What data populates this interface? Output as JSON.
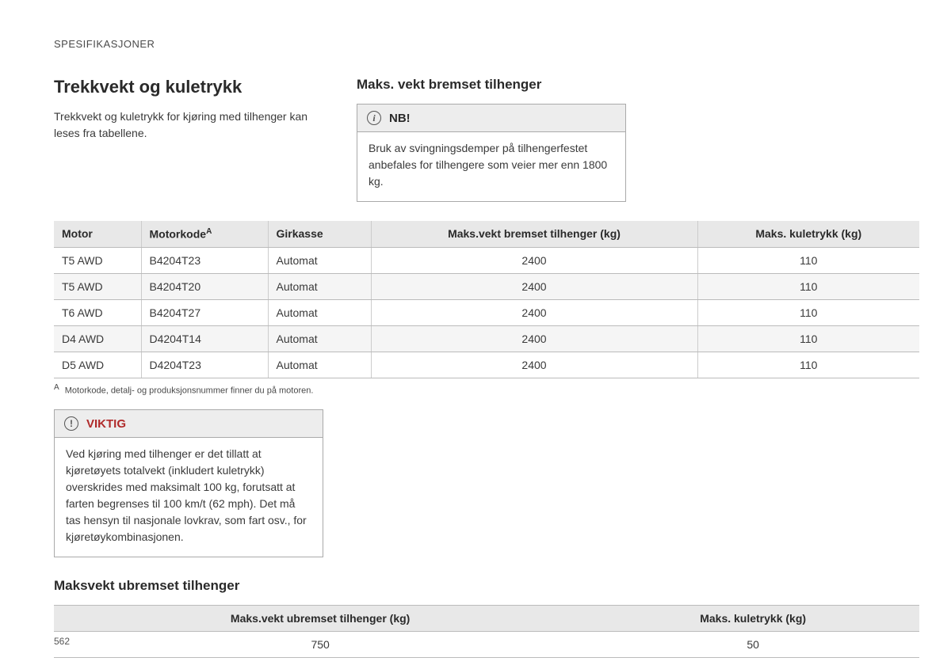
{
  "section_label": "SPESIFIKASJONER",
  "main_heading": "Trekkvekt og kuletrykk",
  "intro_text": "Trekkvekt og kuletrykk for kjøring med tilhenger kan leses fra tabellene.",
  "subheading_right": "Maks. vekt bremset tilhenger",
  "nb_box": {
    "label": "NB!",
    "body": "Bruk av svingningsdemper på tilhengerfestet anbefales for tilhengere som veier mer enn 1800 kg."
  },
  "table1": {
    "columns": [
      "Motor",
      "Motorkode",
      "Girkasse",
      "Maks.vekt bremset tilhenger (kg)",
      "Maks. kuletrykk (kg)"
    ],
    "col_widths": [
      "110px",
      "160px",
      "130px",
      "auto",
      "280px"
    ],
    "superscript_col_idx": 1,
    "superscript": "A",
    "center_cols": [
      3,
      4
    ],
    "rows": [
      [
        "T5 AWD",
        "B4204T23",
        "Automat",
        "2400",
        "110"
      ],
      [
        "T5 AWD",
        "B4204T20",
        "Automat",
        "2400",
        "110"
      ],
      [
        "T6 AWD",
        "B4204T27",
        "Automat",
        "2400",
        "110"
      ],
      [
        "D4 AWD",
        "D4204T14",
        "Automat",
        "2400",
        "110"
      ],
      [
        "D5 AWD",
        "D4204T23",
        "Automat",
        "2400",
        "110"
      ]
    ]
  },
  "footnote": {
    "marker": "A",
    "text": "Motorkode, detalj- og produksjonsnummer finner du på motoren."
  },
  "viktig_box": {
    "label": "VIKTIG",
    "body": "Ved kjøring med tilhenger er det tillatt at kjøretøyets totalvekt (inkludert kuletrykk) overskrides med maksimalt 100 kg, forutsatt at farten begrenses til 100 km/t (62 mph). Det må tas hensyn til nasjonale lovkrav, som fart osv., for kjøretøykombinasjonen."
  },
  "subheading_bottom": "Maksvekt ubremset tilhenger",
  "table2": {
    "columns": [
      "Maks.vekt ubremset tilhenger (kg)",
      "Maks. kuletrykk (kg)"
    ],
    "rows": [
      [
        "750",
        "50"
      ]
    ]
  },
  "page_number": "562"
}
